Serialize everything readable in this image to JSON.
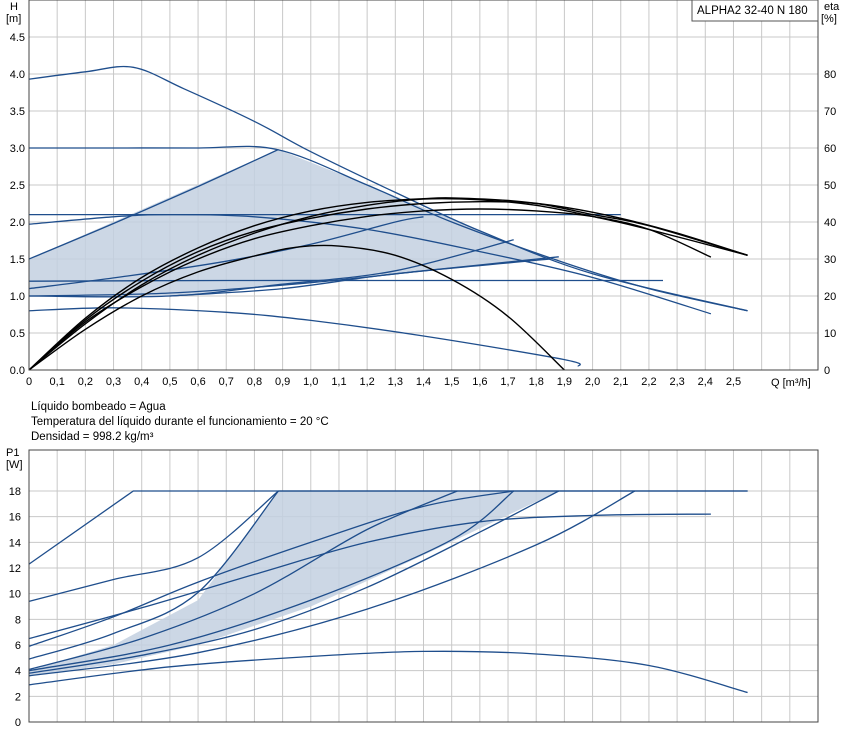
{
  "chart_data": [
    {
      "type": "line",
      "title": "ALPHA2 32-40 N 180",
      "ylabel_name": "H",
      "ylabel_unit": "[m]",
      "y2label_name": "eta",
      "y2label_unit": "[%]",
      "xlabel": "Q [m³/h]",
      "xlim": [
        0,
        2.8
      ],
      "ylim": [
        0,
        4.5
      ],
      "y2lim": [
        0,
        90
      ],
      "xticks": [
        "0",
        "0,1",
        "0,2",
        "0,3",
        "0,4",
        "0,5",
        "0,6",
        "0,7",
        "0,8",
        "0,9",
        "1,0",
        "1,1",
        "1,2",
        "1,3",
        "1,4",
        "1,5",
        "1,6",
        "1,7",
        "1,8",
        "1,9",
        "2,0",
        "2,1",
        "2,2",
        "2,3",
        "2,4",
        "2,5"
      ],
      "yticks": [
        "0.0",
        "0.5",
        "1.0",
        "1.5",
        "2.0",
        "2.5",
        "3.0",
        "3.5",
        "4.0",
        "4.5"
      ],
      "y2ticks": [
        "0",
        "10",
        "20",
        "30",
        "40",
        "50",
        "60",
        "70",
        "80"
      ],
      "grid": true,
      "shaded_region": [
        [
          0,
          1.5
        ],
        [
          0.885,
          2.98
        ],
        [
          1.3,
          2.35
        ],
        [
          1.85,
          1.5
        ],
        [
          0.5,
          1.0
        ],
        [
          0,
          1.0
        ]
      ],
      "series": [
        {
          "kind": "head",
          "points": [
            [
              0,
              3.93
            ],
            [
              0.2,
              4.03
            ],
            [
              0.37,
              4.09
            ],
            [
              0.55,
              3.8
            ],
            [
              0.8,
              3.36
            ],
            [
              1.0,
              2.95
            ],
            [
              1.3,
              2.4
            ],
            [
              1.6,
              1.88
            ],
            [
              2.0,
              1.3
            ],
            [
              2.55,
              0.8
            ]
          ]
        },
        {
          "kind": "head",
          "points": [
            [
              0,
              3.0
            ],
            [
              0.3,
              3.0
            ],
            [
              0.6,
              3.0
            ],
            [
              0.88,
              2.98
            ],
            [
              1.2,
              2.5
            ],
            [
              1.5,
              2.0
            ],
            [
              1.9,
              1.45
            ],
            [
              2.2,
              1.1
            ],
            [
              2.55,
              0.8
            ]
          ]
        },
        {
          "kind": "head",
          "points": [
            [
              0,
              1.5
            ],
            [
              0.3,
              1.98
            ],
            [
              0.6,
              2.48
            ],
            [
              0.885,
              2.98
            ]
          ]
        },
        {
          "kind": "head",
          "points": [
            [
              0,
              2.1
            ],
            [
              0.5,
              2.1
            ],
            [
              1.0,
              2.1
            ],
            [
              1.5,
              2.1
            ],
            [
              2.1,
              2.1
            ]
          ]
        },
        {
          "kind": "head",
          "points": [
            [
              0,
              1.97
            ],
            [
              0.3,
              2.07
            ],
            [
              0.5,
              2.1
            ],
            [
              0.8,
              2.07
            ],
            [
              1.2,
              1.9
            ],
            [
              1.6,
              1.6
            ],
            [
              2.0,
              1.25
            ],
            [
              2.42,
              0.76
            ]
          ]
        },
        {
          "kind": "head",
          "points": [
            [
              0,
              1.1
            ],
            [
              0.35,
              1.27
            ],
            [
              0.7,
              1.47
            ],
            [
              1.0,
              1.7
            ],
            [
              1.3,
              2.0
            ],
            [
              1.4,
              2.07
            ]
          ]
        },
        {
          "kind": "head",
          "points": [
            [
              0,
              1.2
            ],
            [
              0.7,
              1.21
            ],
            [
              1.4,
              1.21
            ],
            [
              2.1,
              1.21
            ],
            [
              2.25,
              1.21
            ]
          ]
        },
        {
          "kind": "head",
          "points": [
            [
              0,
              1.0
            ],
            [
              0.5,
              1.0
            ],
            [
              0.9,
              1.16
            ],
            [
              1.3,
              1.34
            ],
            [
              1.72,
              1.76
            ]
          ]
        },
        {
          "kind": "head",
          "points": [
            [
              0,
              1.0
            ],
            [
              0.5,
              1.04
            ],
            [
              1.0,
              1.18
            ],
            [
              1.4,
              1.34
            ],
            [
              1.88,
              1.53
            ]
          ]
        },
        {
          "kind": "head",
          "points": [
            [
              0,
              0.8
            ],
            [
              0.3,
              0.84
            ],
            [
              0.7,
              0.78
            ],
            [
              1.0,
              0.67
            ],
            [
              1.4,
              0.46
            ],
            [
              1.9,
              0.14
            ],
            [
              1.95,
              0.05
            ]
          ]
        },
        {
          "kind": "head",
          "points": [
            [
              0.5,
              1.0
            ],
            [
              0.9,
              1.1
            ],
            [
              1.3,
              1.3
            ],
            [
              1.85,
              1.5
            ]
          ]
        },
        {
          "kind": "eta",
          "points": [
            [
              0,
              0
            ],
            [
              0.2,
              11
            ],
            [
              0.4,
              20
            ],
            [
              0.6,
              26.5
            ],
            [
              0.8,
              30.8
            ],
            [
              0.95,
              33.2
            ],
            [
              1.1,
              33.5
            ],
            [
              1.3,
              31
            ],
            [
              1.5,
              24.5
            ],
            [
              1.7,
              14.5
            ],
            [
              1.9,
              0
            ]
          ]
        },
        {
          "kind": "eta",
          "points": [
            [
              0,
              0
            ],
            [
              0.2,
              13
            ],
            [
              0.4,
              22.5
            ],
            [
              0.6,
              30
            ],
            [
              0.8,
              35.5
            ],
            [
              1.0,
              39
            ],
            [
              1.2,
              41.5
            ],
            [
              1.4,
              43
            ],
            [
              1.6,
              43.5
            ],
            [
              1.8,
              43
            ],
            [
              2.0,
              41.5
            ],
            [
              2.2,
              38
            ],
            [
              2.42,
              30.5
            ]
          ]
        },
        {
          "kind": "eta",
          "points": [
            [
              0,
              0
            ],
            [
              0.2,
              13.5
            ],
            [
              0.4,
              24
            ],
            [
              0.6,
              32
            ],
            [
              0.8,
              37.5
            ],
            [
              1.0,
              41
            ],
            [
              1.2,
              43.5
            ],
            [
              1.4,
              45
            ],
            [
              1.6,
              45.5
            ],
            [
              1.8,
              45
            ],
            [
              2.0,
              42
            ],
            [
              2.2,
              39
            ],
            [
              2.55,
              31
            ]
          ]
        },
        {
          "kind": "eta",
          "points": [
            [
              0,
              0
            ],
            [
              0.2,
              14
            ],
            [
              0.4,
              25
            ],
            [
              0.6,
              33
            ],
            [
              0.8,
              39
            ],
            [
              1.0,
              43
            ],
            [
              1.2,
              45.3
            ],
            [
              1.4,
              46.3
            ],
            [
              1.5,
              46.5
            ],
            [
              1.7,
              45.8
            ],
            [
              1.9,
              44
            ],
            [
              2.1,
              41
            ],
            [
              2.3,
              37
            ],
            [
              2.55,
              31
            ]
          ]
        },
        {
          "kind": "eta",
          "points": [
            [
              0,
              0
            ],
            [
              0.2,
              12.5
            ],
            [
              0.4,
              23
            ],
            [
              0.6,
              31
            ],
            [
              0.8,
              37
            ],
            [
              1.0,
              41.5
            ],
            [
              1.2,
              44.5
            ],
            [
              1.4,
              46.2
            ],
            [
              1.6,
              46
            ],
            [
              1.8,
              44.5
            ],
            [
              2.0,
              41.5
            ],
            [
              2.2,
              38
            ],
            [
              2.55,
              31
            ]
          ]
        }
      ]
    },
    {
      "type": "line",
      "ylabel_name": "P1",
      "ylabel_unit": "[W]",
      "xlim": [
        0,
        2.8
      ],
      "ylim": [
        0,
        20
      ],
      "yticks": [
        "0",
        "2",
        "4",
        "6",
        "8",
        "10",
        "12",
        "14",
        "16",
        "18"
      ],
      "grid": true,
      "shaded_region": [
        [
          0,
          4.0
        ],
        [
          0.3,
          6.0
        ],
        [
          0.6,
          9.5
        ],
        [
          0.885,
          18
        ],
        [
          1.88,
          18
        ],
        [
          1.4,
          13
        ],
        [
          1.0,
          9.0
        ],
        [
          0.6,
          6.0
        ],
        [
          0.3,
          4.5
        ],
        [
          0,
          3.6
        ]
      ],
      "series": [
        {
          "kind": "power",
          "points": [
            [
              0,
              12.3
            ],
            [
              0.37,
              18
            ],
            [
              2.55,
              18
            ]
          ]
        },
        {
          "kind": "power",
          "points": [
            [
              0,
              9.4
            ],
            [
              0.3,
              11.1
            ],
            [
              0.6,
              12.8
            ],
            [
              0.885,
              18
            ]
          ]
        },
        {
          "kind": "power",
          "points": [
            [
              0,
              6.5
            ],
            [
              0.4,
              8.9
            ],
            [
              0.8,
              11.5
            ],
            [
              1.2,
              14.0
            ],
            [
              1.6,
              15.6
            ],
            [
              2.0,
              16.1
            ],
            [
              2.42,
              16.2
            ]
          ]
        },
        {
          "kind": "power",
          "points": [
            [
              0,
              5.9
            ],
            [
              0.3,
              8.2
            ],
            [
              0.6,
              10.9
            ],
            [
              1.0,
              14.0
            ],
            [
              1.4,
              16.8
            ],
            [
              1.72,
              18
            ]
          ]
        },
        {
          "kind": "power",
          "points": [
            [
              0,
              4.9
            ],
            [
              0.3,
              6.9
            ],
            [
              0.6,
              10.1
            ],
            [
              0.885,
              18
            ]
          ]
        },
        {
          "kind": "power",
          "points": [
            [
              0,
              4.1
            ],
            [
              0.4,
              6.5
            ],
            [
              0.8,
              10.0
            ],
            [
              1.2,
              15.0
            ],
            [
              1.52,
              18
            ]
          ]
        },
        {
          "kind": "power",
          "points": [
            [
              0,
              4.0
            ],
            [
              0.5,
              6.0
            ],
            [
              1.0,
              9.5
            ],
            [
              1.5,
              14.2
            ],
            [
              1.72,
              18
            ]
          ]
        },
        {
          "kind": "power",
          "points": [
            [
              0,
              3.8
            ],
            [
              0.4,
              5.2
            ],
            [
              0.8,
              7.2
            ],
            [
              1.2,
              10.5
            ],
            [
              1.6,
              14.8
            ],
            [
              1.88,
              18
            ]
          ]
        },
        {
          "kind": "power",
          "points": [
            [
              0,
              3.6
            ],
            [
              0.6,
              5.4
            ],
            [
              1.2,
              8.8
            ],
            [
              1.8,
              13.8
            ],
            [
              2.15,
              18
            ]
          ]
        },
        {
          "kind": "power",
          "points": [
            [
              0,
              2.9
            ],
            [
              0.5,
              4.3
            ],
            [
              1.0,
              5.1
            ],
            [
              1.4,
              5.5
            ],
            [
              1.8,
              5.3
            ],
            [
              2.2,
              4.4
            ],
            [
              2.55,
              2.3
            ]
          ]
        },
        {
          "kind": "power",
          "points": [
            [
              0.885,
              18
            ],
            [
              2.55,
              18
            ]
          ]
        }
      ]
    }
  ],
  "info": {
    "line1": "Líquido bombeado = Agua",
    "line2": "Temperatura del líquido durante el funcionamiento = 20 °C",
    "line3": "Densidad = 998.2 kg/m³"
  },
  "colors": {
    "curve_blue": "#1f4e8c",
    "efficiency": "#000000",
    "fill": "#c3d0e0",
    "grid": "#c8c8c8"
  }
}
